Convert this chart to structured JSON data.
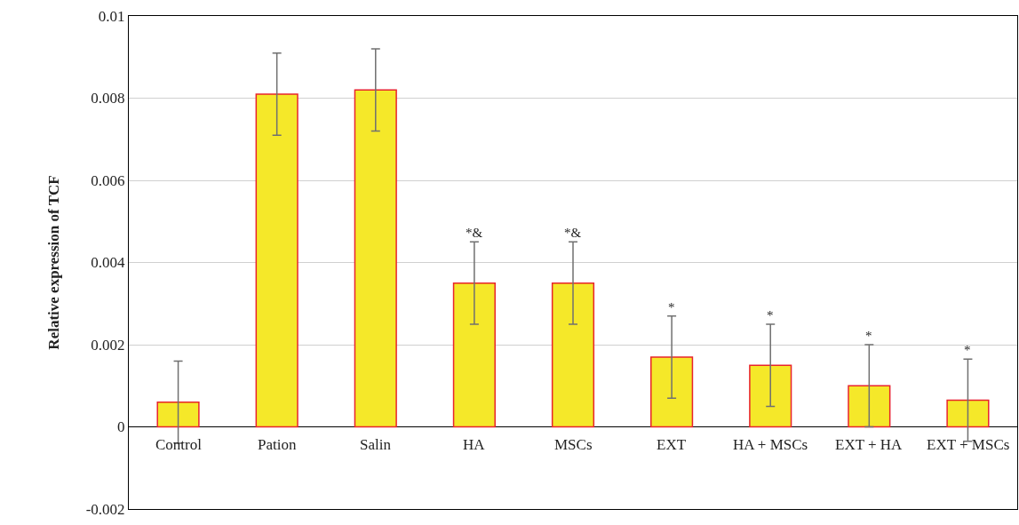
{
  "chart_data": {
    "type": "bar",
    "ylabel": "Relative expression of TCF",
    "categories": [
      "Control",
      "Pation",
      "Salin",
      "HA",
      "MSCs",
      "EXT",
      "HA + MSCs",
      "EXT + HA",
      "EXT + MSCs"
    ],
    "values": [
      0.0006,
      0.0081,
      0.0082,
      0.0035,
      0.0035,
      0.0017,
      0.0015,
      0.001,
      0.00065
    ],
    "errors": [
      0.001,
      0.001,
      0.001,
      0.001,
      0.001,
      0.001,
      0.001,
      0.001,
      0.001
    ],
    "color": "#f5e829",
    "ylim": [
      -0.002,
      0.01
    ],
    "yticks": [
      -0.002,
      0,
      0.002,
      0.004,
      0.006,
      0.008,
      0.01
    ],
    "grid": "y",
    "annotations": [
      {
        "text": "*&",
        "x": "HA",
        "y": 0.0045
      },
      {
        "text": "*&",
        "x": "MSCs",
        "y": 0.0045
      },
      {
        "text": "*",
        "x": "EXT",
        "y": 0.0027
      },
      {
        "text": "*",
        "x": "HA + MSCs",
        "y": 0.0025
      },
      {
        "text": "*",
        "x": "EXT + HA",
        "y": 0.002
      },
      {
        "text": "*",
        "x": "EXT + MSCs",
        "y": 0.00165
      }
    ]
  }
}
